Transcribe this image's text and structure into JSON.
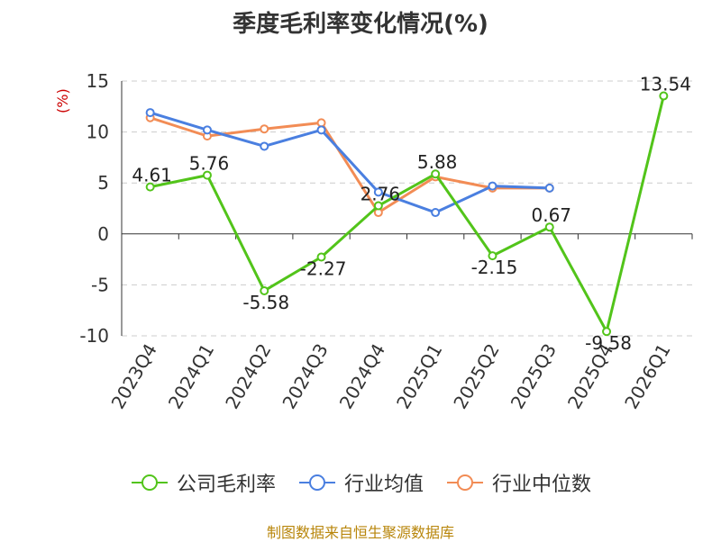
{
  "chart_data": {
    "type": "line",
    "title": "季度毛利率变化情况(%)",
    "ylabel": "(%)",
    "categories": [
      "2023Q4",
      "2024Q1",
      "2024Q2",
      "2024Q3",
      "2024Q4",
      "2025Q1",
      "2025Q2",
      "2025Q3",
      "2025Q4",
      "2026Q1"
    ],
    "ylim": [
      -10,
      15
    ],
    "yticks": [
      -10,
      -5,
      0,
      5,
      10,
      15
    ],
    "grid": true,
    "legend_position": "bottom",
    "series": [
      {
        "name": "公司毛利率",
        "color": "#52c41a",
        "values": [
          4.61,
          5.76,
          -5.58,
          -2.27,
          2.76,
          5.88,
          -2.15,
          0.67,
          -9.58,
          13.54
        ],
        "labels": [
          "4.61",
          "5.76",
          "-5.58",
          "-2.27",
          "2.76",
          "5.88",
          "-2.15",
          "0.67",
          "-9.58",
          "13.54"
        ]
      },
      {
        "name": "行业均值",
        "color": "#4a7fe0",
        "values": [
          11.9,
          10.2,
          8.6,
          10.2,
          4.1,
          2.1,
          4.7,
          4.5,
          null,
          null
        ]
      },
      {
        "name": "行业中位数",
        "color": "#f28c55",
        "values": [
          11.4,
          9.6,
          10.3,
          10.9,
          2.1,
          5.6,
          4.5,
          4.5,
          null,
          null
        ]
      }
    ]
  },
  "legend": {
    "item_0": "公司毛利率",
    "item_1": "行业均值",
    "item_2": "行业中位数"
  },
  "footer": {
    "source": "制图数据来自恒生聚源数据库"
  }
}
